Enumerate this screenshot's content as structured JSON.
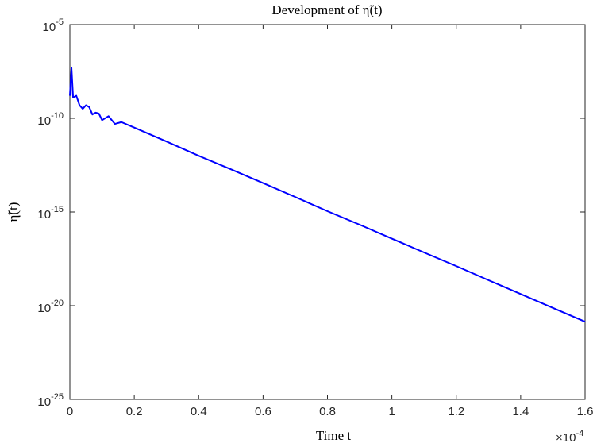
{
  "chart_data": {
    "type": "line",
    "title": "Development of η̃(t)",
    "xlabel": "Time t",
    "ylabel": "η̃(t)",
    "x_multiplier": {
      "base": "×10",
      "exponent": "-4"
    },
    "x": [
      0,
      0.005,
      0.01,
      0.02,
      0.03,
      0.04,
      0.05,
      0.06,
      0.07,
      0.08,
      0.09,
      0.1,
      0.12,
      0.14,
      0.16,
      0.2,
      0.3,
      0.4,
      0.5,
      0.6,
      0.7,
      0.8,
      0.9,
      1.0,
      1.1,
      1.2,
      1.3,
      1.4,
      1.5,
      1.6
    ],
    "values": [
      1.6e-09,
      5e-08,
      1.3e-09,
      1.6e-09,
      5e-10,
      3.2e-10,
      5e-10,
      4e-10,
      1.6e-10,
      2e-10,
      1.8e-10,
      8e-11,
      1.3e-10,
      5e-11,
      6.3e-11,
      3.2e-11,
      5.8e-12,
      1e-12,
      1.9e-13,
      3.5e-14,
      6.3e-15,
      1.1e-15,
      2.1e-16,
      3.8e-17,
      6.9e-18,
      1.3e-18,
      2.3e-19,
      4.2e-20,
      7.6e-21,
      1.4e-21
    ],
    "color": "#0000ff",
    "log_y": true,
    "grid": false,
    "xlim": [
      0,
      1.6
    ],
    "xticks": [
      0,
      0.2,
      0.4,
      0.6,
      0.8,
      1,
      1.2,
      1.4,
      1.6
    ],
    "ylim": [
      1e-25,
      1e-05
    ],
    "yticks": [
      {
        "value": 1e-25,
        "label": "10",
        "exponent": "-25"
      },
      {
        "value": 1e-20,
        "label": "10",
        "exponent": "-20"
      },
      {
        "value": 1e-15,
        "label": "10",
        "exponent": "-15"
      },
      {
        "value": 1e-10,
        "label": "10",
        "exponent": "-10"
      },
      {
        "value": 1e-05,
        "label": "10",
        "exponent": "-5"
      }
    ]
  }
}
